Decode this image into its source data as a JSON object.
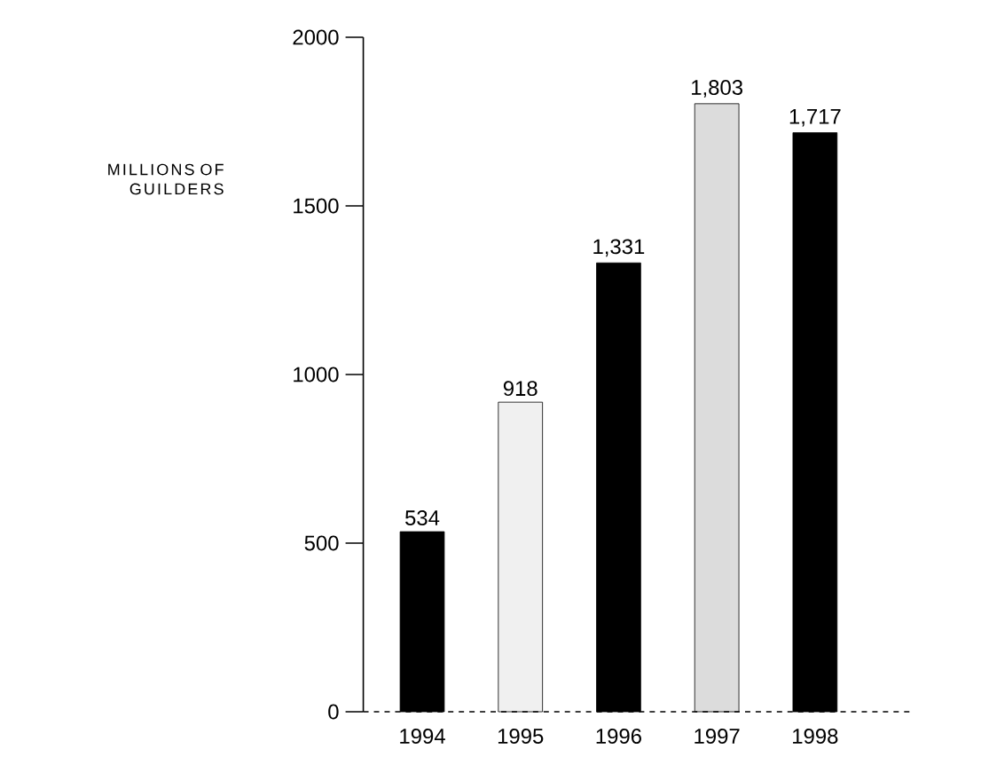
{
  "chart_data": {
    "type": "bar",
    "ylabel": "MILLIONS OF GUILDERS",
    "categories": [
      "1994",
      "1995",
      "1996",
      "1997",
      "1998"
    ],
    "values": [
      534,
      918,
      1331,
      1803,
      1717
    ],
    "value_labels": [
      "534",
      "918",
      "1,331",
      "1,803",
      "1,717"
    ],
    "colors": [
      "#000000",
      "#f0f0f0",
      "#000000",
      "#dcdcdc",
      "#000000"
    ],
    "ylim": [
      0,
      2000
    ],
    "yticks": [
      0,
      500,
      1000,
      1500,
      2000
    ]
  }
}
